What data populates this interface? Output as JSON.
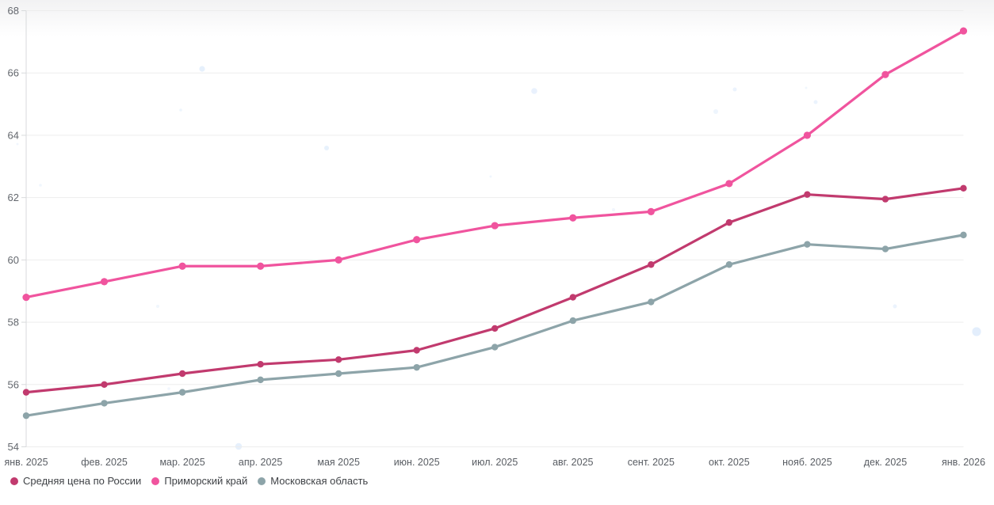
{
  "chart_data": {
    "type": "line",
    "title": "",
    "xlabel": "",
    "ylabel": "",
    "x_categories": [
      "янв. 2025",
      "фев. 2025",
      "мар. 2025",
      "апр. 2025",
      "мая 2025",
      "июн. 2025",
      "июл. 2025",
      "авг. 2025",
      "сент. 2025",
      "окт. 2025",
      "нояб. 2025",
      "дек. 2025",
      "янв. 2026"
    ],
    "ylim": [
      54,
      68
    ],
    "yticks": [
      54,
      56,
      58,
      60,
      62,
      64,
      66,
      68
    ],
    "grid": true,
    "legend_position": "bottom-left",
    "series": [
      {
        "name": "Средняя цена по России",
        "color": "#c13a6e",
        "values": [
          55.75,
          56.0,
          56.35,
          56.65,
          56.8,
          57.1,
          57.8,
          58.8,
          59.85,
          61.2,
          62.1,
          61.95,
          62.3
        ]
      },
      {
        "name": "Приморский край",
        "color": "#f0549e",
        "values": [
          58.8,
          59.3,
          59.8,
          59.8,
          60.0,
          60.65,
          61.1,
          61.35,
          61.55,
          62.45,
          64.0,
          65.95,
          67.35
        ]
      },
      {
        "name": "Московская область",
        "color": "#8da4a9",
        "values": [
          55.0,
          55.4,
          55.75,
          56.15,
          56.35,
          56.55,
          57.2,
          58.05,
          58.65,
          59.85,
          60.5,
          60.35,
          60.8
        ]
      }
    ]
  },
  "colors": {
    "gridline": "#ededed",
    "axis_line": "#d8dadc",
    "y_tick_label": "#63676d",
    "x_tick_label": "#595d63",
    "legend_text": "#3f4246",
    "background_bubble": "#e3eefc"
  }
}
